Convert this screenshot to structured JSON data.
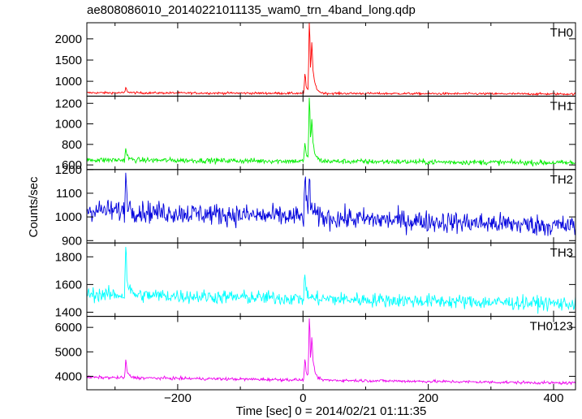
{
  "chart_data": {
    "type": "line",
    "title": "ae808086010_20140221011135_wam0_trn_4band_long.qdp",
    "xlabel": "Time [sec] 0 = 2014/02/21 01:11:35",
    "ylabel": "Counts/sec",
    "xlim": [
      -345,
      435
    ],
    "x_ticks": [
      -200,
      0,
      200,
      400
    ],
    "x_tick_labels": [
      "−200",
      "0",
      "200",
      "400"
    ],
    "grid": false,
    "panels": [
      {
        "name": "TH0",
        "color": "#ff0000",
        "ylim": [
          650,
          2380
        ],
        "y_ticks": [
          1000,
          1500,
          2000
        ],
        "y_tick_labels": [
          "1000",
          "1500",
          "2000"
        ],
        "baseline": 730,
        "baseline_end": 700,
        "noise": 25,
        "features": [
          {
            "x": -283,
            "peak": 850
          },
          {
            "x": 3,
            "peak": 1180
          },
          {
            "x": 10,
            "peak": 2380
          },
          {
            "x": 14,
            "peak": 1550
          }
        ]
      },
      {
        "name": "TH1",
        "color": "#00ee00",
        "ylim": [
          555,
          1270
        ],
        "y_ticks": [
          600,
          800,
          1000,
          1200
        ],
        "y_tick_labels": [
          "600",
          "800",
          "1000",
          "1200"
        ],
        "baseline": 650,
        "baseline_end": 620,
        "noise": 25,
        "features": [
          {
            "x": -283,
            "peak": 770
          },
          {
            "x": 3,
            "peak": 840
          },
          {
            "x": 10,
            "peak": 1260
          },
          {
            "x": 14,
            "peak": 900
          }
        ]
      },
      {
        "name": "TH2",
        "color": "#0000dd",
        "ylim": [
          890,
          1200
        ],
        "y_ticks": [
          900,
          1000,
          1100,
          1200
        ],
        "y_tick_labels": [
          "900",
          "1000",
          "1100",
          "1200"
        ],
        "baseline": 1030,
        "baseline_end": 960,
        "noise": 45,
        "features": [
          {
            "x": -283,
            "peak": 1190
          },
          {
            "x": 3,
            "peak": 1200
          },
          {
            "x": 10,
            "peak": 1190
          }
        ]
      },
      {
        "name": "TH3",
        "color": "#00ffff",
        "ylim": [
          1370,
          1900
        ],
        "y_ticks": [
          1400,
          1600,
          1800
        ],
        "y_tick_labels": [
          "1400",
          "1600",
          "1800"
        ],
        "baseline": 1530,
        "baseline_end": 1460,
        "noise": 50,
        "features": [
          {
            "x": -283,
            "peak": 1890
          },
          {
            "x": 3,
            "peak": 1700
          }
        ]
      },
      {
        "name": "TH0123",
        "color": "#ee00ee",
        "ylim": [
          3450,
          6450
        ],
        "y_ticks": [
          4000,
          5000,
          6000
        ],
        "y_tick_labels": [
          "4000",
          "5000",
          "6000"
        ],
        "baseline": 3960,
        "baseline_end": 3720,
        "noise": 60,
        "features": [
          {
            "x": -283,
            "peak": 4700
          },
          {
            "x": 3,
            "peak": 4850
          },
          {
            "x": 10,
            "peak": 6450
          },
          {
            "x": 14,
            "peak": 5100
          }
        ]
      }
    ]
  }
}
